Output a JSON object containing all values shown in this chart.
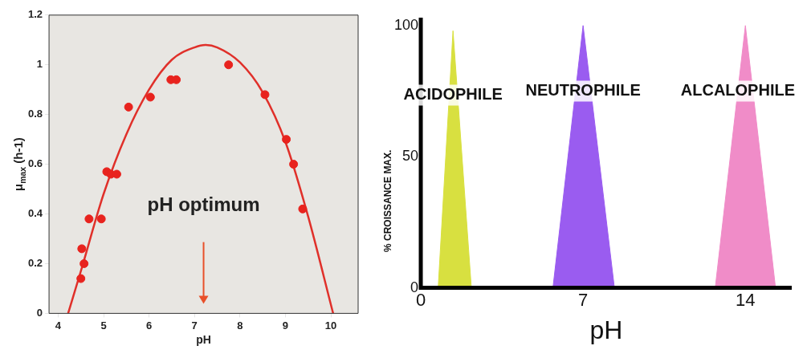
{
  "chart_data": [
    {
      "type": "scatter",
      "xlabel": "pH",
      "ylabel": "μ$_{max}$ (h-1)",
      "xlim": [
        3.8,
        10.6
      ],
      "xticks": [
        4,
        5,
        6,
        7,
        8,
        9,
        10
      ],
      "ylim": [
        0,
        1.2
      ],
      "yticks": [
        0,
        0.2,
        0.4,
        0.6,
        0.8,
        1,
        1.2
      ],
      "annotations": [
        "pH optimum"
      ],
      "series": [
        {
          "type": "scatter",
          "marker": "circle",
          "color": "#e8231e",
          "x": [
            4.5,
            4.52,
            4.57,
            4.68,
            4.95,
            5.07,
            5.16,
            5.29,
            5.55,
            6.03,
            6.48,
            6.6,
            7.75,
            8.55,
            9.02,
            9.18,
            9.38
          ],
          "values": [
            0.14,
            0.26,
            0.2,
            0.38,
            0.38,
            0.57,
            0.56,
            0.56,
            0.83,
            0.87,
            0.94,
            0.94,
            1.0,
            0.88,
            0.7,
            0.6,
            0.42
          ]
        },
        {
          "type": "line",
          "marker": "none",
          "color": "#e0302a",
          "x": [
            4.22,
            4.5,
            5,
            5.5,
            6,
            6.5,
            7,
            7.25,
            7.5,
            8,
            8.5,
            9,
            9.5,
            10.05
          ],
          "values": [
            0,
            0.17,
            0.48,
            0.72,
            0.9,
            1.02,
            1.07,
            1.08,
            1.07,
            1.01,
            0.89,
            0.69,
            0.39,
            0
          ]
        }
      ]
    },
    {
      "type": "area",
      "xlabel": "pH",
      "ylabel": "% CROISSANCE MAX.",
      "xlim": [
        0,
        16
      ],
      "xticks": [
        0,
        7,
        14
      ],
      "ylim": [
        0,
        103
      ],
      "yticks": [
        0,
        50,
        100
      ],
      "series": [
        {
          "name": "ACIDOPHILE",
          "color": "#d8e040",
          "x": [
            0.75,
            1.39,
            2.18
          ],
          "values": [
            0,
            98,
            0
          ]
        },
        {
          "name": "NEUTROPHILE",
          "color": "#9a5cf0",
          "x": [
            5.7,
            7,
            8.35
          ],
          "values": [
            0,
            100,
            0
          ]
        },
        {
          "name": "ALCALOPHILE",
          "color": "#f08cc8",
          "x": [
            12.7,
            14,
            15.3
          ],
          "values": [
            0,
            100,
            0
          ]
        }
      ]
    }
  ]
}
